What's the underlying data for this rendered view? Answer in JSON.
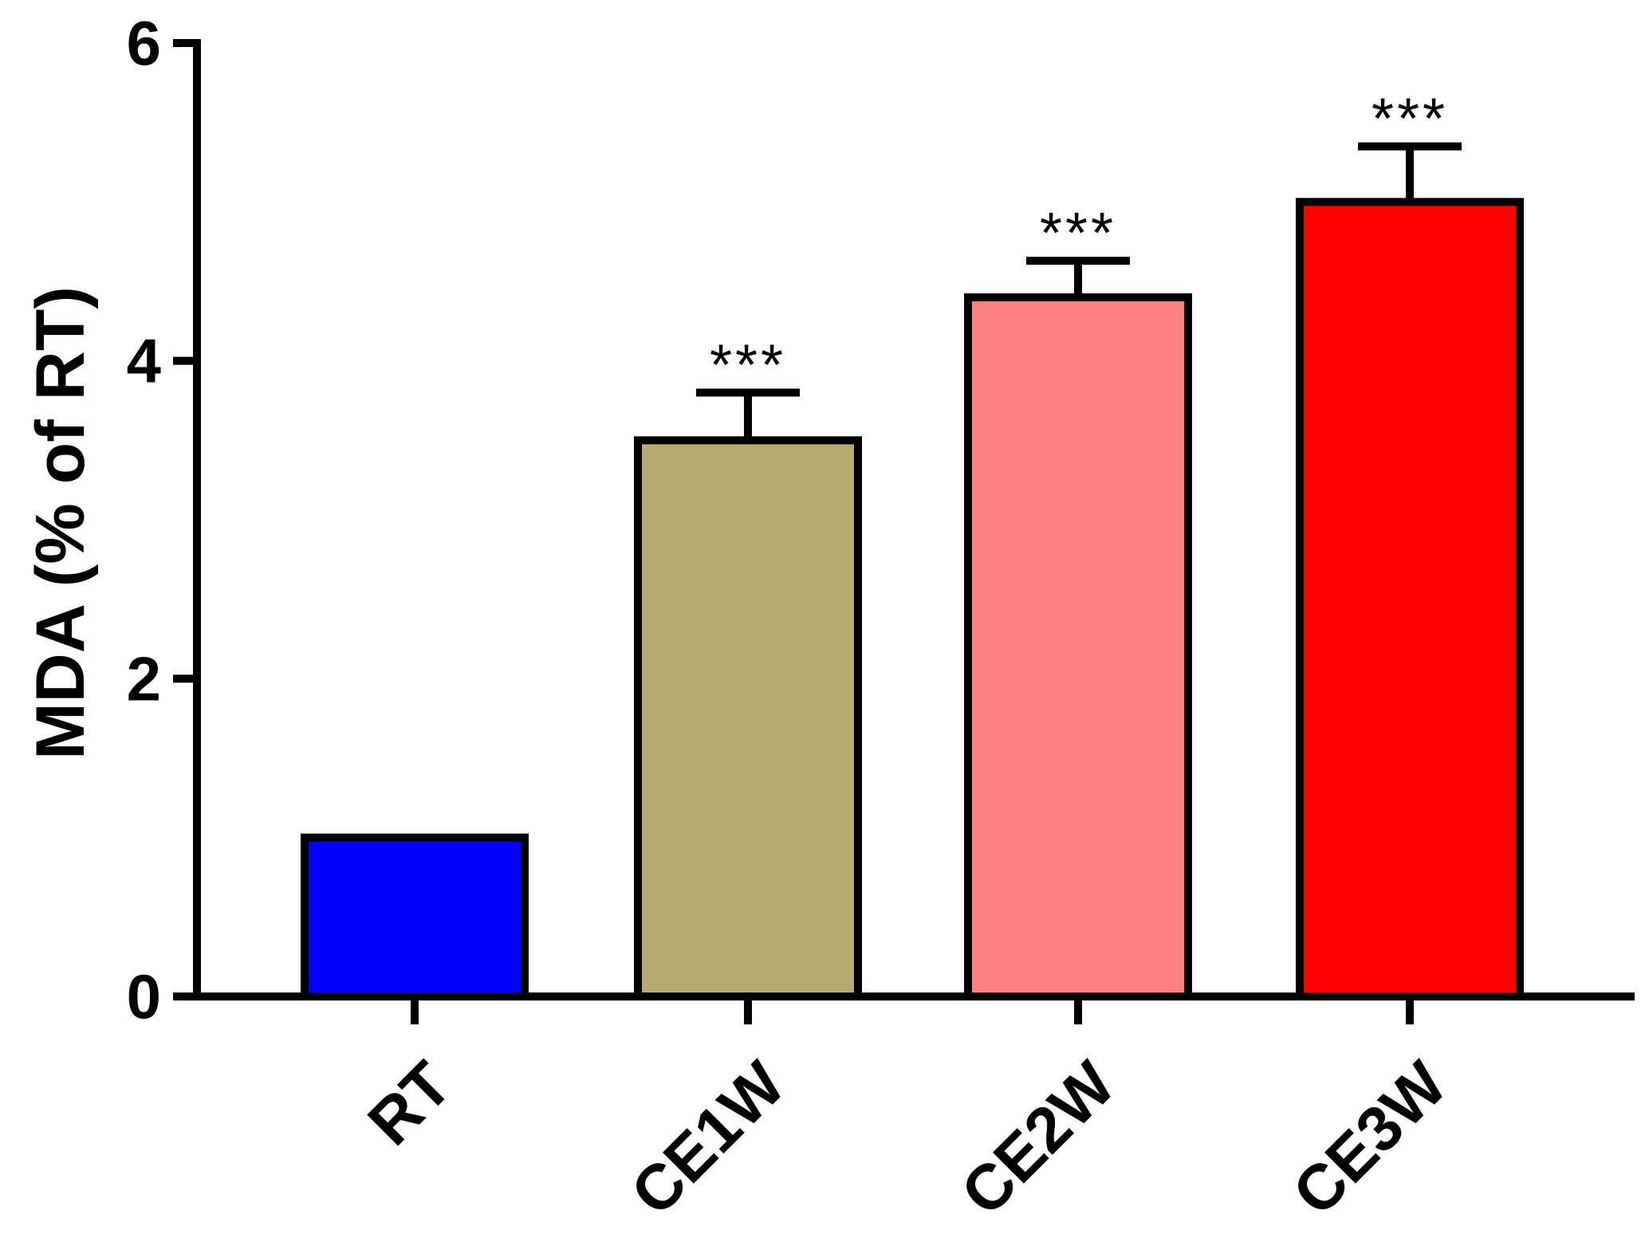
{
  "chart_data": {
    "type": "bar",
    "title": "",
    "xlabel": "",
    "ylabel": "MDA (% of RT)",
    "ylim": [
      0,
      6
    ],
    "yticks": [
      0,
      2,
      4,
      6
    ],
    "yticks_labels": [
      "0",
      "2",
      "4",
      "6"
    ],
    "categories": [
      "RT",
      "CE1W",
      "CE2W",
      "CE3W"
    ],
    "values": [
      1.0,
      3.5,
      4.4,
      5.0
    ],
    "errors": [
      0.0,
      0.3,
      0.23,
      0.35
    ],
    "significance": [
      "",
      "***",
      "***",
      "***"
    ],
    "colors": [
      "#0000ff",
      "#b8a974",
      "#ff8080",
      "#ff0000"
    ],
    "grid": false,
    "legend": "none"
  }
}
